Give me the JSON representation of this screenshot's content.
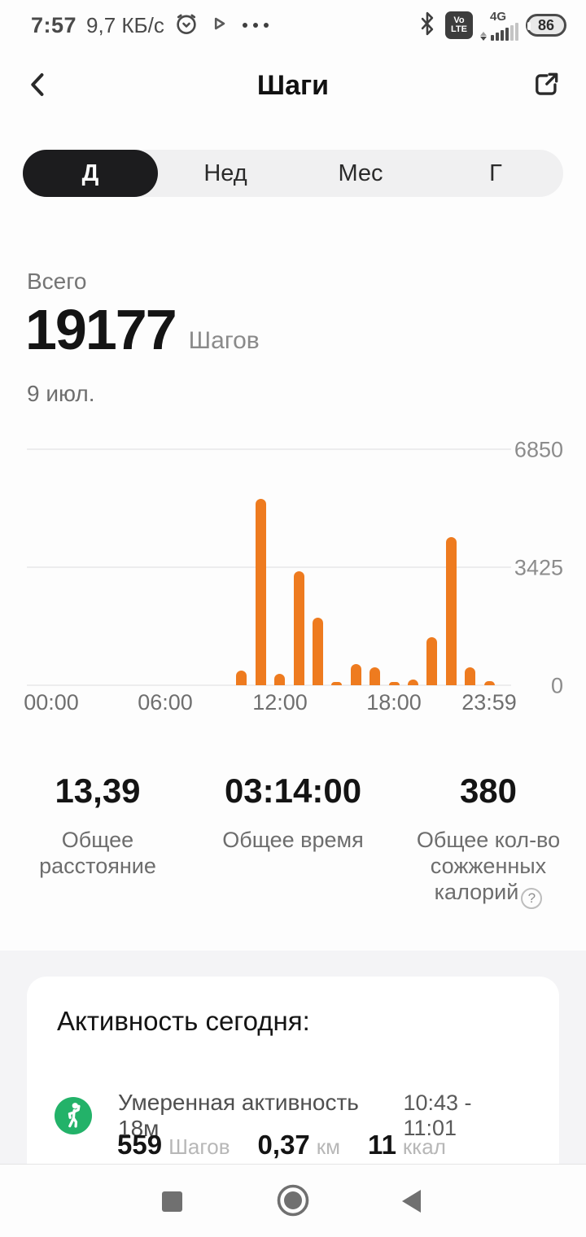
{
  "status_bar": {
    "time": "7:57",
    "network_speed": "9,7 КБ/с",
    "network_type": "4G",
    "volte_line1": "Vo",
    "volte_line2": "LTE",
    "battery_percent": "86"
  },
  "header": {
    "title": "Шаги"
  },
  "tabs": {
    "items": [
      {
        "label": "Д",
        "active": true
      },
      {
        "label": "Нед",
        "active": false
      },
      {
        "label": "Мес",
        "active": false
      },
      {
        "label": "Г",
        "active": false
      }
    ]
  },
  "summary": {
    "label": "Всего",
    "value": "19177",
    "unit": "Шагов",
    "date": "9 июл."
  },
  "chart_data": {
    "type": "bar",
    "values_by_hour": [
      0,
      0,
      0,
      0,
      0,
      0,
      0,
      0,
      0,
      0,
      420,
      5400,
      330,
      3300,
      1960,
      90,
      620,
      510,
      70,
      160,
      1390,
      4300,
      520,
      110
    ],
    "xtick_labels": [
      "00:00",
      "06:00",
      "12:00",
      "18:00",
      "23:59"
    ],
    "yticks": [
      "6850",
      "3425",
      "0"
    ],
    "ylim": [
      0,
      6850
    ],
    "bar_color": "#ee7b1f",
    "grid": true,
    "legend": false
  },
  "stats": [
    {
      "value": "13,39",
      "label": "Общее расстояние"
    },
    {
      "value": "03:14:00",
      "label": "Общее время"
    },
    {
      "value": "380",
      "label": "Общее кол-во сожженных калорий"
    }
  ],
  "activity_card": {
    "title": "Активность сегодня:",
    "item": {
      "name": "Умеренная активность 18м",
      "time_range": "10:43 - 11:01",
      "metrics": [
        {
          "value": "559",
          "unit": "Шагов"
        },
        {
          "value": "0,37",
          "unit": "км"
        },
        {
          "value": "11",
          "unit": "ккал"
        }
      ]
    }
  },
  "icons": {
    "help": "?",
    "colors": {
      "accent_orange": "#ee7b1f",
      "activity_green": "#23b269",
      "active_tab": "#1c1c1e"
    }
  }
}
